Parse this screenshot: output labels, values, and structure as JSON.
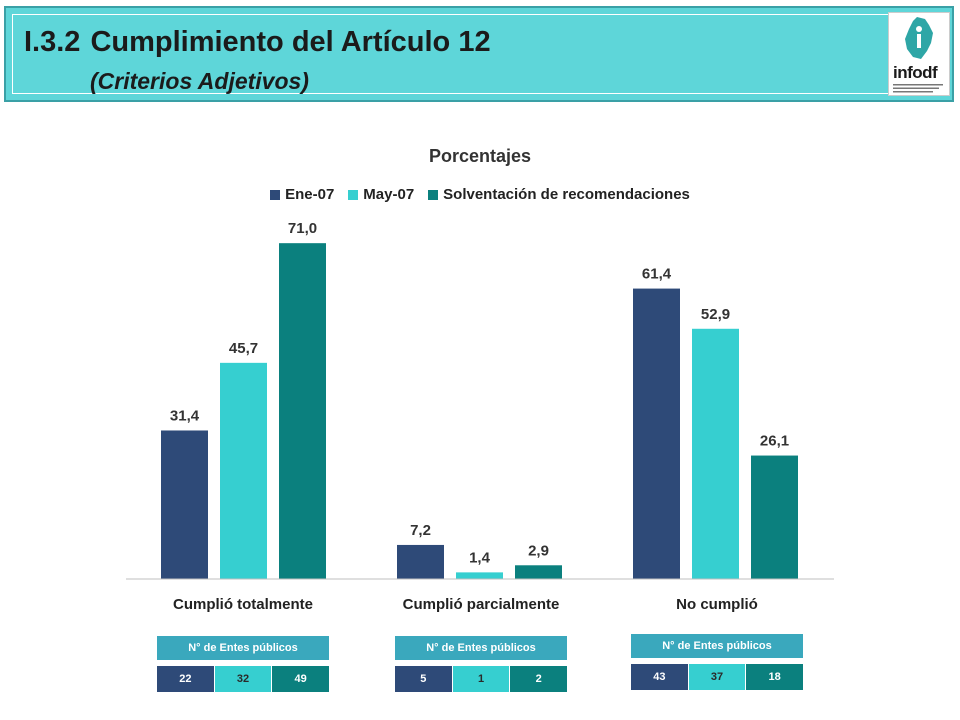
{
  "header": {
    "number": "I.3.2",
    "title": "Cumplimiento del Artículo 12",
    "subtitle": "(Criterios Adjetivos)",
    "logo_text": "infodf"
  },
  "colors": {
    "header_bg": "#5ed6d9",
    "series": [
      "#2e4a78",
      "#36cfd0",
      "#0b807e"
    ],
    "entes_header": "#3aa8bd"
  },
  "chart_data": {
    "type": "bar",
    "title": "Porcentajes",
    "categories": [
      "Cumplió totalmente",
      "Cumplió parcialmente",
      "No cumplió"
    ],
    "series": [
      {
        "name": "Ene-07",
        "values": [
          31.4,
          7.2,
          61.4
        ],
        "labels": [
          "31,4",
          "7,2",
          "61,4"
        ]
      },
      {
        "name": "May-07",
        "values": [
          45.7,
          1.4,
          52.9
        ],
        "labels": [
          "45,7",
          "1,4",
          "52,9"
        ]
      },
      {
        "name": "Solventación de recomendaciones",
        "values": [
          71.0,
          2.9,
          26.1
        ],
        "labels": [
          "71,0",
          "2,9",
          "26,1"
        ]
      }
    ],
    "ylim": [
      0,
      75
    ],
    "legend_position": "top-center",
    "grid": false
  },
  "entes": {
    "header": "N° de Entes públicos",
    "groups": [
      [
        "22",
        "32",
        "49"
      ],
      [
        "5",
        "1",
        "2"
      ],
      [
        "43",
        "37",
        "18"
      ]
    ]
  }
}
